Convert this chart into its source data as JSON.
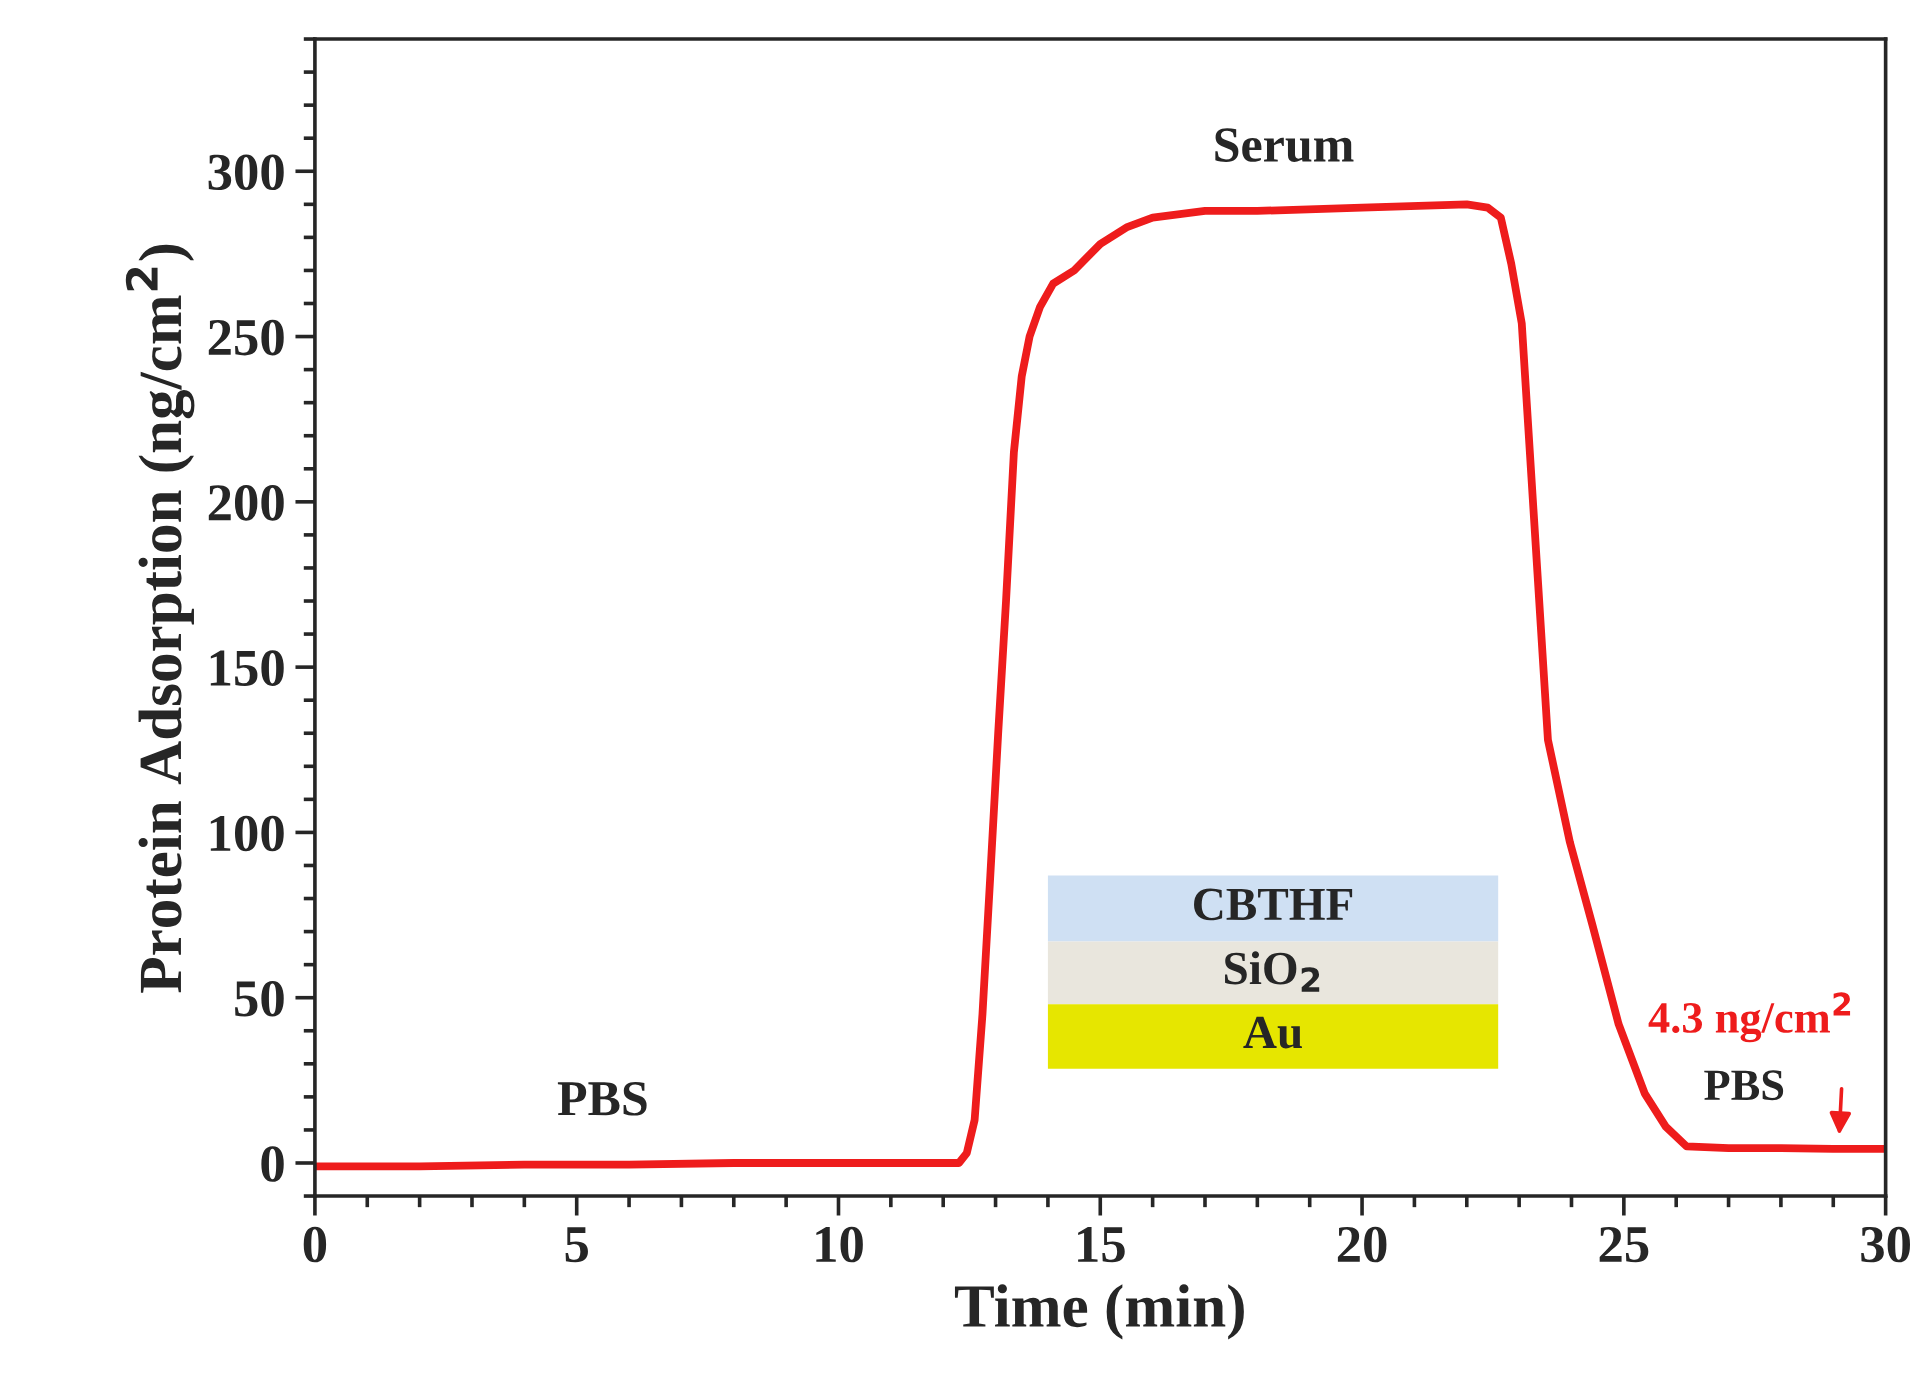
{
  "chart_data": {
    "type": "line",
    "xlabel": "Time (min)",
    "ylabel": "Protein Adsorption (ng/cm$^{2}$)",
    "xlim": [
      0,
      30
    ],
    "xticks": [
      0,
      5,
      10,
      15,
      20,
      25,
      30
    ],
    "ylim": [
      -10,
      340
    ],
    "yticks": [
      0,
      50,
      100,
      150,
      200,
      250,
      300
    ],
    "grid": false,
    "legend": false,
    "marker": "none",
    "line_style": "solid",
    "series": [
      {
        "color": "#ee1c1c",
        "x": [
          0,
          2,
          4,
          6,
          8,
          10,
          12,
          12.3,
          12.45,
          12.6,
          12.75,
          12.9,
          13.05,
          13.2,
          13.35,
          13.5,
          13.65,
          13.85,
          14.1,
          14.5,
          15,
          15.5,
          16,
          17,
          18,
          20,
          22,
          22.4,
          22.65,
          22.85,
          23.05,
          23.3,
          23.55,
          23.97,
          24.4,
          24.9,
          25.4,
          25.8,
          26.2,
          27,
          28,
          29,
          30
        ],
        "values": [
          -1,
          -1,
          -0.5,
          -0.5,
          0,
          0,
          0,
          0,
          3,
          13,
          45,
          87,
          130,
          170,
          215,
          238,
          250,
          259,
          266,
          270,
          278,
          283,
          286,
          288,
          288,
          289,
          290,
          289,
          286,
          272,
          254,
          191,
          128,
          97,
          72,
          42,
          21,
          11,
          5,
          4.5,
          4.5,
          4.3,
          4.3
        ]
      }
    ],
    "annotations": [
      {
        "text": "PBS",
        "x": 5.5,
        "y": -0.5
      },
      {
        "text": "Serum",
        "x": 18.5,
        "y": 288
      },
      {
        "text": "PBS",
        "x": 27.3,
        "y": 4.5
      },
      {
        "text": "4.3 ng/cm$^{2}$",
        "x": 29.1,
        "y": 4.3
      },
      "CBTHF",
      "SiO$_{2}$",
      "Au"
    ]
  }
}
